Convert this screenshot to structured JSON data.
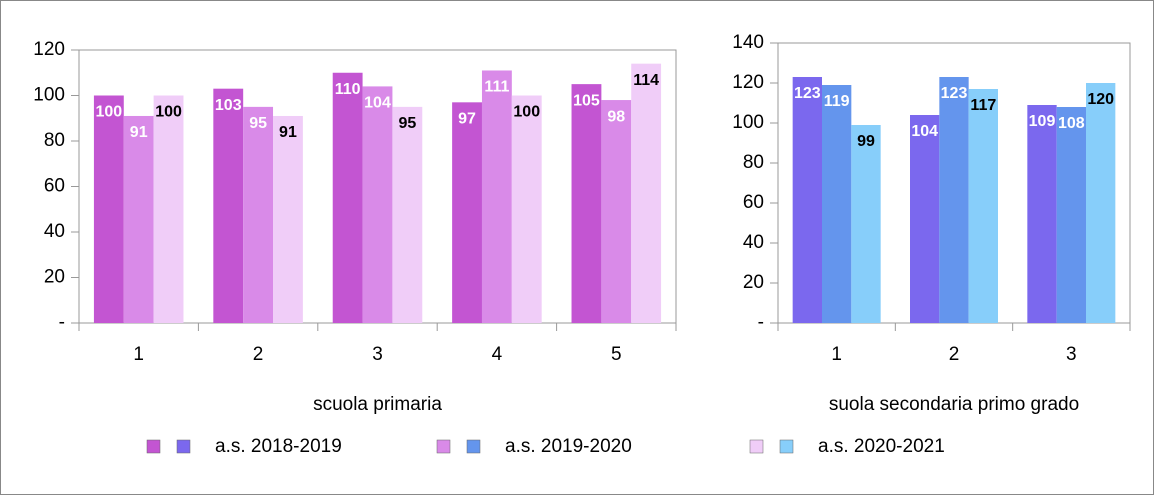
{
  "chart_data": [
    {
      "type": "bar",
      "categories": [
        "1",
        "2",
        "3",
        "4",
        "5"
      ],
      "xlabel": "scuola primaria",
      "ylim": [
        0,
        120
      ],
      "yticks": [
        {
          "value": 0,
          "label": "-"
        },
        20,
        40,
        60,
        80,
        100,
        120
      ],
      "series": [
        {
          "color": "#c355d2",
          "values": [
            100,
            103,
            110,
            97,
            105
          ]
        },
        {
          "color": "#d98ae8",
          "values": [
            91,
            95,
            104,
            111,
            98
          ]
        },
        {
          "color": "#f0cdf8",
          "values": [
            100,
            91,
            95,
            100,
            114
          ]
        }
      ]
    },
    {
      "type": "bar",
      "categories": [
        "1",
        "2",
        "3"
      ],
      "xlabel": "suola secondaria primo grado",
      "ylim": [
        0,
        140
      ],
      "yticks": [
        {
          "value": 0,
          "label": "-"
        },
        20,
        40,
        60,
        80,
        100,
        120,
        140
      ],
      "series": [
        {
          "color": "#7b68ee",
          "values": [
            123,
            104,
            109
          ]
        },
        {
          "color": "#6495ed",
          "values": [
            119,
            123,
            108
          ]
        },
        {
          "color": "#87cefa",
          "values": [
            99,
            117,
            120
          ]
        }
      ]
    }
  ],
  "legend": [
    "a.s. 2018-2019",
    "a.s. 2019-2020",
    "a.s. 2020-2021"
  ]
}
